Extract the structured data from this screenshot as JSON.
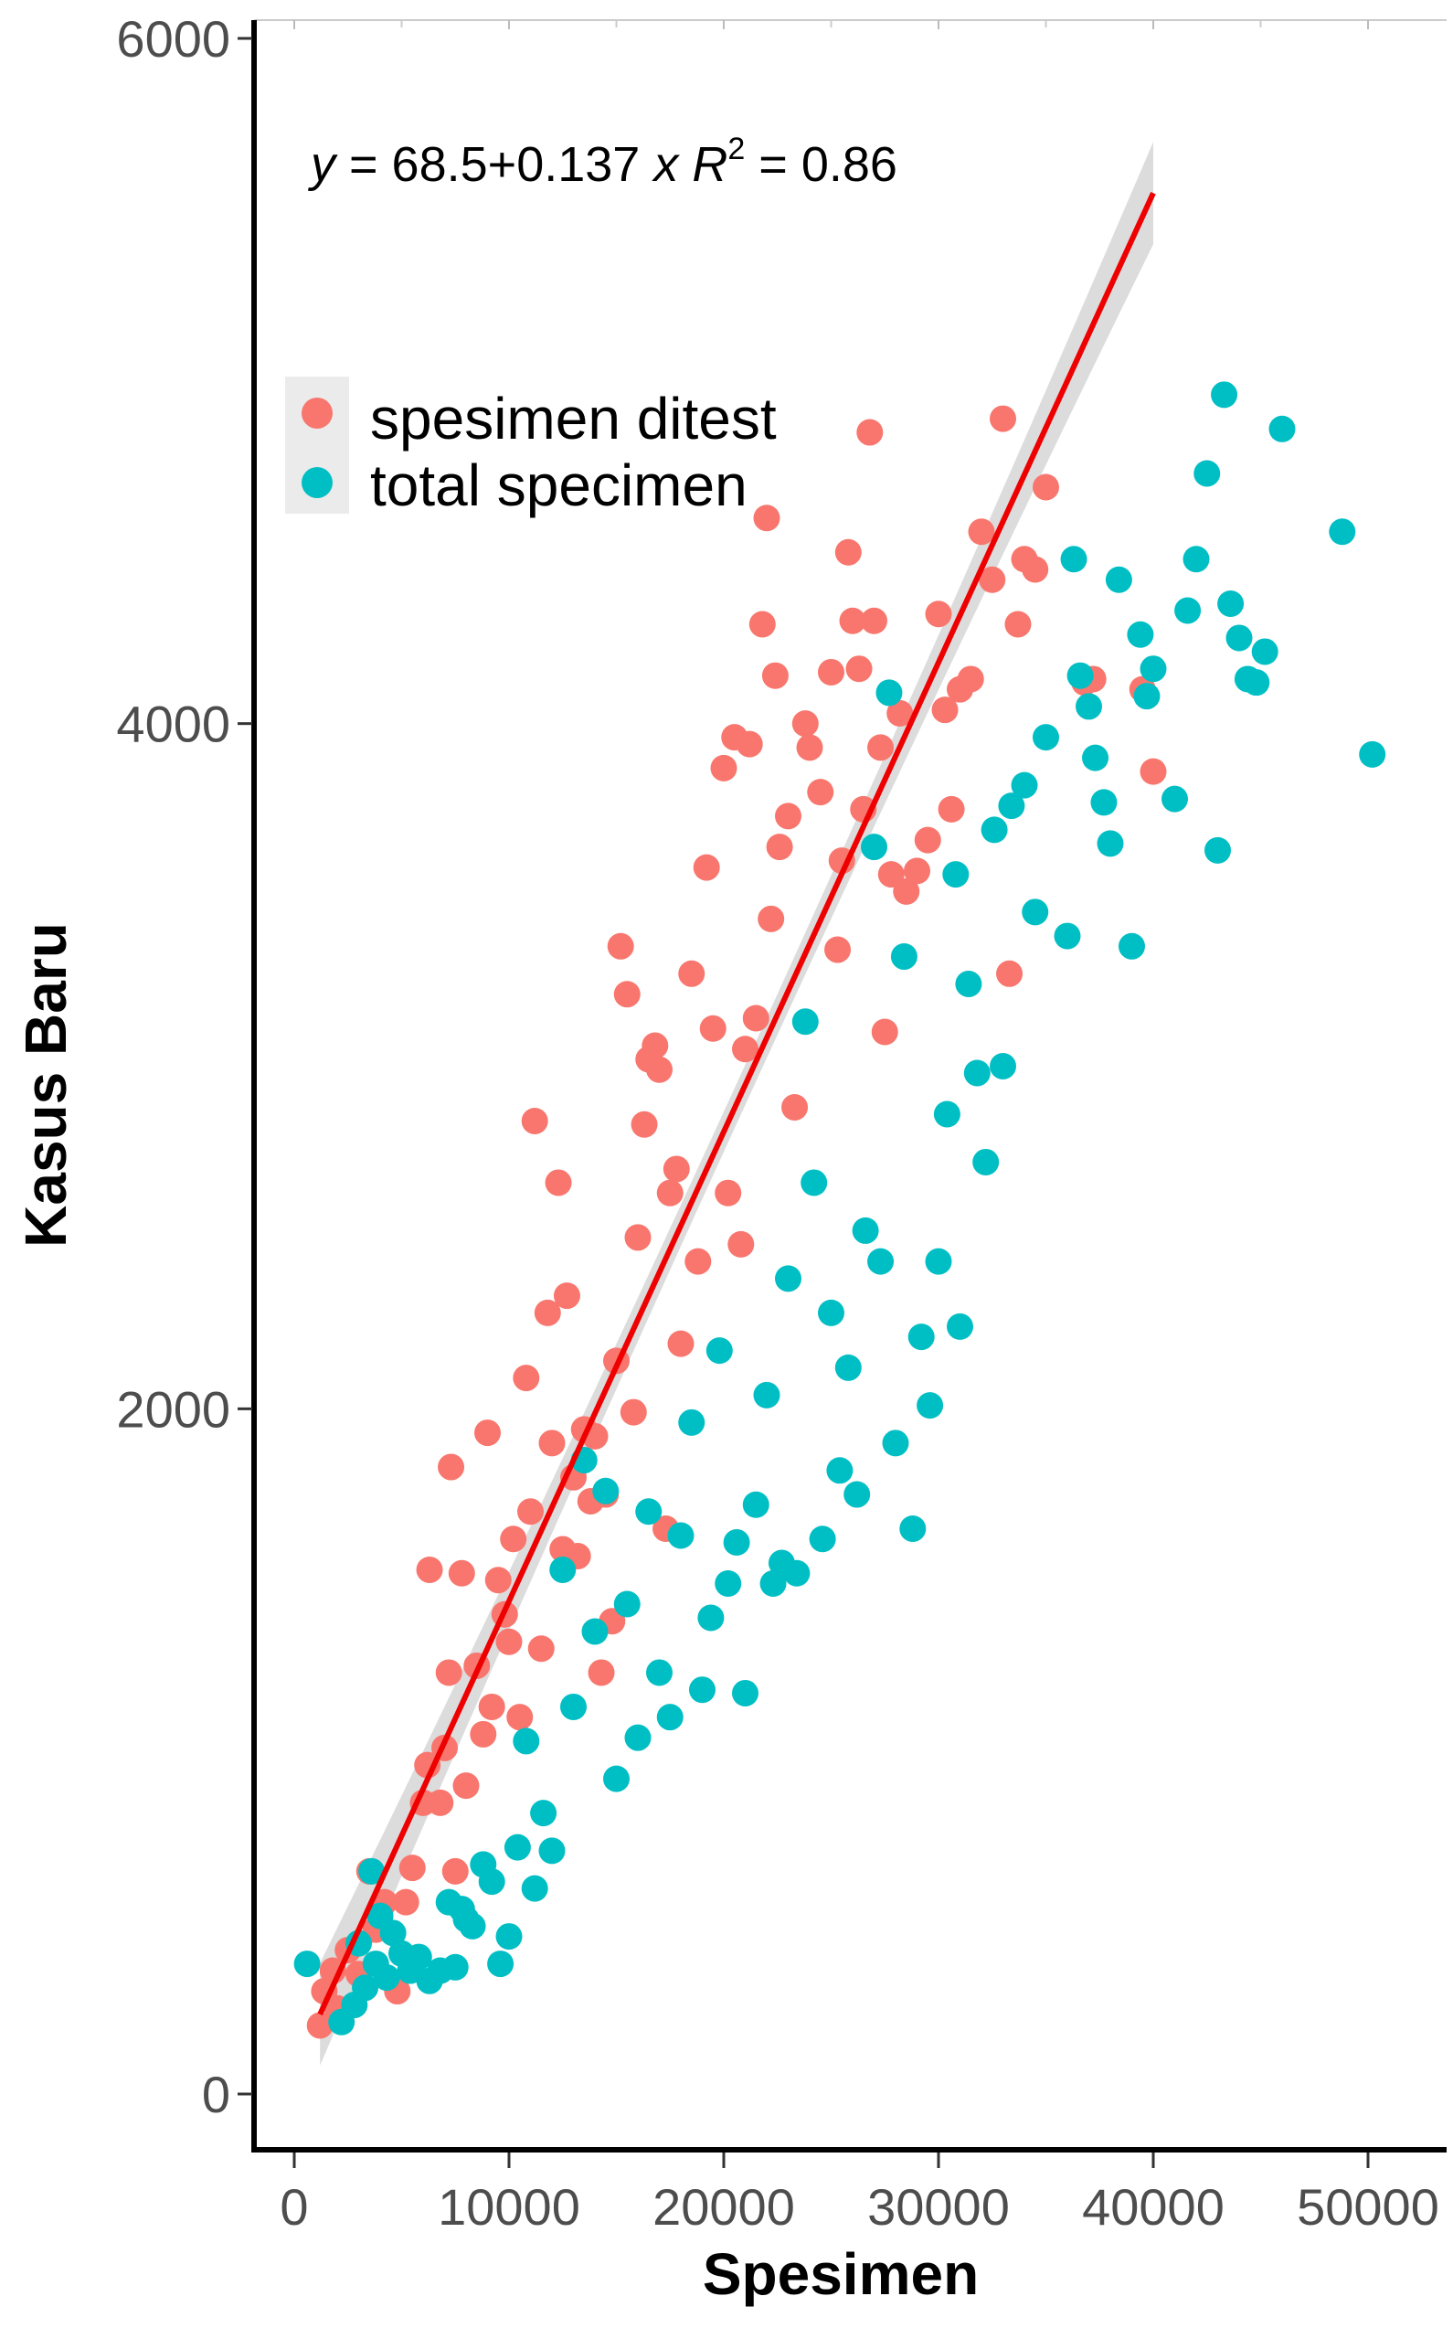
{
  "chart_data": {
    "type": "scatter",
    "title": "",
    "xlabel": "Spesimen",
    "ylabel": "Kasus Baru",
    "xlim": [
      -2000,
      53000
    ],
    "ylim": [
      -150,
      6050
    ],
    "x_ticks": [
      0,
      10000,
      20000,
      30000,
      40000,
      50000
    ],
    "x_tick_labels": [
      "0",
      "10000",
      "20000",
      "30000",
      "40000",
      "50000"
    ],
    "y_ticks": [
      0,
      2000,
      4000,
      6000
    ],
    "y_tick_labels": [
      "0",
      "2000",
      "4000",
      "6000"
    ],
    "grid": false,
    "legend_position": "top-left",
    "annotation": {
      "y_var": "y",
      "intercept": "68.5",
      "plus": "+",
      "slope": "0.137",
      "x_var": "x",
      "r_label": "R",
      "r_exp": "2",
      "r_value": "0.86"
    },
    "fit_line": {
      "intercept": 68.5,
      "slope": 0.137,
      "x_range": [
        1200,
        40000
      ],
      "color": "#ee0000",
      "ci_color": "#d0d0d0"
    },
    "series": [
      {
        "name": "spesimen ditest",
        "color": "#f8766d",
        "points": [
          [
            1200,
            200
          ],
          [
            1400,
            300
          ],
          [
            1800,
            360
          ],
          [
            2000,
            250
          ],
          [
            2500,
            420
          ],
          [
            3000,
            350
          ],
          [
            3500,
            650
          ],
          [
            3800,
            480
          ],
          [
            4200,
            560
          ],
          [
            4800,
            300
          ],
          [
            5200,
            560
          ],
          [
            5500,
            660
          ],
          [
            6000,
            850
          ],
          [
            6200,
            960
          ],
          [
            6300,
            1530
          ],
          [
            6800,
            850
          ],
          [
            7000,
            1010
          ],
          [
            7200,
            1230
          ],
          [
            7300,
            1830
          ],
          [
            7500,
            650
          ],
          [
            7800,
            1520
          ],
          [
            8000,
            900
          ],
          [
            8500,
            1250
          ],
          [
            8800,
            1050
          ],
          [
            9000,
            1930
          ],
          [
            9200,
            1130
          ],
          [
            9500,
            1500
          ],
          [
            9800,
            1400
          ],
          [
            10000,
            1320
          ],
          [
            10200,
            1620
          ],
          [
            10500,
            1100
          ],
          [
            10800,
            2090
          ],
          [
            11000,
            1700
          ],
          [
            11200,
            2840
          ],
          [
            11500,
            1300
          ],
          [
            11800,
            2280
          ],
          [
            12000,
            1900
          ],
          [
            12300,
            2660
          ],
          [
            12500,
            1590
          ],
          [
            12700,
            2330
          ],
          [
            13000,
            1800
          ],
          [
            13200,
            1570
          ],
          [
            13500,
            1940
          ],
          [
            13800,
            1730
          ],
          [
            14000,
            1920
          ],
          [
            14300,
            1230
          ],
          [
            14500,
            1750
          ],
          [
            14800,
            1380
          ],
          [
            15000,
            2140
          ],
          [
            15200,
            3350
          ],
          [
            15500,
            3210
          ],
          [
            15800,
            1990
          ],
          [
            16000,
            2500
          ],
          [
            16300,
            2830
          ],
          [
            16500,
            3020
          ],
          [
            16800,
            3060
          ],
          [
            17000,
            2990
          ],
          [
            17300,
            1650
          ],
          [
            17500,
            2630
          ],
          [
            17800,
            2700
          ],
          [
            18000,
            2190
          ],
          [
            18500,
            3270
          ],
          [
            18800,
            2430
          ],
          [
            19200,
            3580
          ],
          [
            19500,
            3110
          ],
          [
            20000,
            3870
          ],
          [
            20200,
            2630
          ],
          [
            20500,
            3960
          ],
          [
            20800,
            2480
          ],
          [
            21000,
            3050
          ],
          [
            21200,
            3940
          ],
          [
            21500,
            3140
          ],
          [
            21800,
            4290
          ],
          [
            22000,
            4600
          ],
          [
            22200,
            3430
          ],
          [
            22400,
            4140
          ],
          [
            22600,
            3640
          ],
          [
            23000,
            3730
          ],
          [
            23300,
            2880
          ],
          [
            23800,
            4000
          ],
          [
            24000,
            3930
          ],
          [
            24500,
            3800
          ],
          [
            25000,
            4150
          ],
          [
            25300,
            3340
          ],
          [
            25500,
            3600
          ],
          [
            25800,
            4500
          ],
          [
            26000,
            4300
          ],
          [
            26300,
            4160
          ],
          [
            26500,
            3750
          ],
          [
            26800,
            4850
          ],
          [
            27000,
            4300
          ],
          [
            27300,
            3930
          ],
          [
            27500,
            3100
          ],
          [
            27800,
            3560
          ],
          [
            28200,
            4030
          ],
          [
            28500,
            3510
          ],
          [
            29000,
            3570
          ],
          [
            29500,
            3660
          ],
          [
            30000,
            4320
          ],
          [
            30300,
            4040
          ],
          [
            30600,
            3750
          ],
          [
            31000,
            4100
          ],
          [
            31500,
            4130
          ],
          [
            32000,
            4560
          ],
          [
            32500,
            4420
          ],
          [
            33000,
            4890
          ],
          [
            33300,
            3270
          ],
          [
            33700,
            4290
          ],
          [
            34000,
            4480
          ],
          [
            34500,
            4450
          ],
          [
            35000,
            4690
          ],
          [
            36800,
            4120
          ],
          [
            37200,
            4130
          ],
          [
            39500,
            4100
          ],
          [
            40000,
            3860
          ]
        ]
      },
      {
        "name": "total specimen",
        "color": "#00bfc4",
        "points": [
          [
            600,
            380
          ],
          [
            2200,
            210
          ],
          [
            2800,
            260
          ],
          [
            3000,
            440
          ],
          [
            3300,
            310
          ],
          [
            3600,
            650
          ],
          [
            3800,
            380
          ],
          [
            4000,
            520
          ],
          [
            4300,
            340
          ],
          [
            4600,
            470
          ],
          [
            5000,
            410
          ],
          [
            5400,
            360
          ],
          [
            5800,
            400
          ],
          [
            6300,
            330
          ],
          [
            6800,
            360
          ],
          [
            7200,
            560
          ],
          [
            7500,
            370
          ],
          [
            7800,
            540
          ],
          [
            8000,
            510
          ],
          [
            8300,
            490
          ],
          [
            8800,
            670
          ],
          [
            9200,
            620
          ],
          [
            9600,
            380
          ],
          [
            10000,
            460
          ],
          [
            10400,
            720
          ],
          [
            10800,
            1030
          ],
          [
            11200,
            600
          ],
          [
            11600,
            820
          ],
          [
            12000,
            710
          ],
          [
            12500,
            1530
          ],
          [
            13000,
            1130
          ],
          [
            13500,
            1850
          ],
          [
            14000,
            1350
          ],
          [
            14500,
            1760
          ],
          [
            15000,
            920
          ],
          [
            15500,
            1430
          ],
          [
            16000,
            1040
          ],
          [
            16500,
            1700
          ],
          [
            17000,
            1230
          ],
          [
            17500,
            1100
          ],
          [
            18000,
            1630
          ],
          [
            18500,
            1960
          ],
          [
            19000,
            1180
          ],
          [
            19400,
            1390
          ],
          [
            19800,
            2170
          ],
          [
            20200,
            1490
          ],
          [
            20600,
            1610
          ],
          [
            21000,
            1170
          ],
          [
            21500,
            1720
          ],
          [
            22000,
            2040
          ],
          [
            22300,
            1490
          ],
          [
            22700,
            1550
          ],
          [
            23000,
            2380
          ],
          [
            23400,
            1520
          ],
          [
            23800,
            3130
          ],
          [
            24200,
            2660
          ],
          [
            24600,
            1620
          ],
          [
            25000,
            2280
          ],
          [
            25400,
            1820
          ],
          [
            25800,
            2120
          ],
          [
            26200,
            1750
          ],
          [
            26600,
            2520
          ],
          [
            27000,
            3640
          ],
          [
            27300,
            2430
          ],
          [
            27700,
            4090
          ],
          [
            28000,
            1900
          ],
          [
            28400,
            3320
          ],
          [
            28800,
            1650
          ],
          [
            29200,
            2210
          ],
          [
            29600,
            2010
          ],
          [
            30000,
            2430
          ],
          [
            30400,
            2860
          ],
          [
            30800,
            3560
          ],
          [
            31000,
            2240
          ],
          [
            31400,
            3240
          ],
          [
            31800,
            2980
          ],
          [
            32200,
            2720
          ],
          [
            32600,
            3690
          ],
          [
            33000,
            3000
          ],
          [
            33400,
            3760
          ],
          [
            34000,
            3820
          ],
          [
            34500,
            3450
          ],
          [
            35000,
            3960
          ],
          [
            36000,
            3380
          ],
          [
            36300,
            4480
          ],
          [
            36600,
            4140
          ],
          [
            37000,
            4050
          ],
          [
            37300,
            3900
          ],
          [
            37700,
            3770
          ],
          [
            38000,
            3650
          ],
          [
            38400,
            4420
          ],
          [
            39000,
            3350
          ],
          [
            39400,
            4260
          ],
          [
            39700,
            4080
          ],
          [
            40000,
            4160
          ],
          [
            41000,
            3780
          ],
          [
            41600,
            4330
          ],
          [
            42000,
            4480
          ],
          [
            42500,
            4730
          ],
          [
            43000,
            3630
          ],
          [
            43300,
            4960
          ],
          [
            43600,
            4350
          ],
          [
            44000,
            4250
          ],
          [
            44400,
            4130
          ],
          [
            44800,
            4120
          ],
          [
            45200,
            4210
          ],
          [
            46000,
            4860
          ],
          [
            48800,
            4560
          ],
          [
            50200,
            3910
          ]
        ]
      }
    ]
  }
}
